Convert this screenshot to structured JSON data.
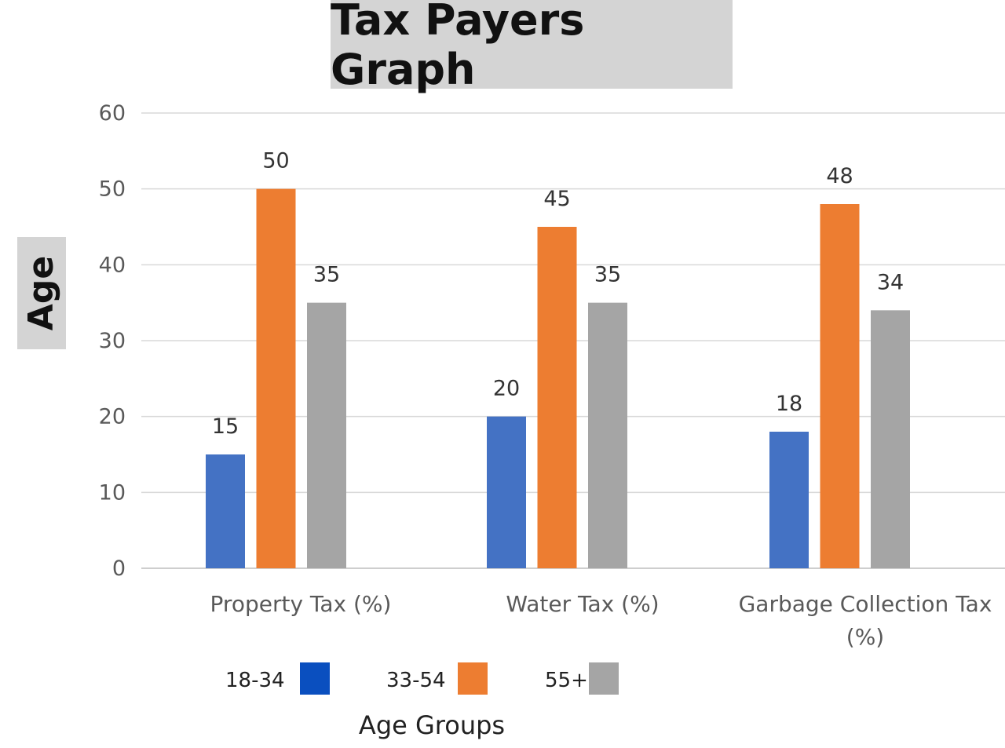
{
  "chart_data": {
    "type": "bar",
    "title": "Tax Payers Graph",
    "ylabel": "Age",
    "legend_title": "Age Groups",
    "legend_position": "bottom",
    "ylim": [
      0,
      60
    ],
    "yticks": [
      0,
      10,
      20,
      30,
      40,
      50,
      60
    ],
    "grid": true,
    "categories": [
      "Property Tax (%)",
      "Water Tax (%)",
      "Garbage Collection Tax (%)"
    ],
    "series": [
      {
        "name": "18-34",
        "values": [
          15,
          20,
          18
        ],
        "color": "#4472c4",
        "legend_color": "#0a4fbf"
      },
      {
        "name": "33-54",
        "values": [
          50,
          45,
          48
        ],
        "color": "#ed7d31",
        "legend_color": "#ed7d31"
      },
      {
        "name": "55+",
        "values": [
          35,
          35,
          34
        ],
        "color": "#a5a5a5",
        "legend_color": "#a5a5a5"
      }
    ]
  }
}
